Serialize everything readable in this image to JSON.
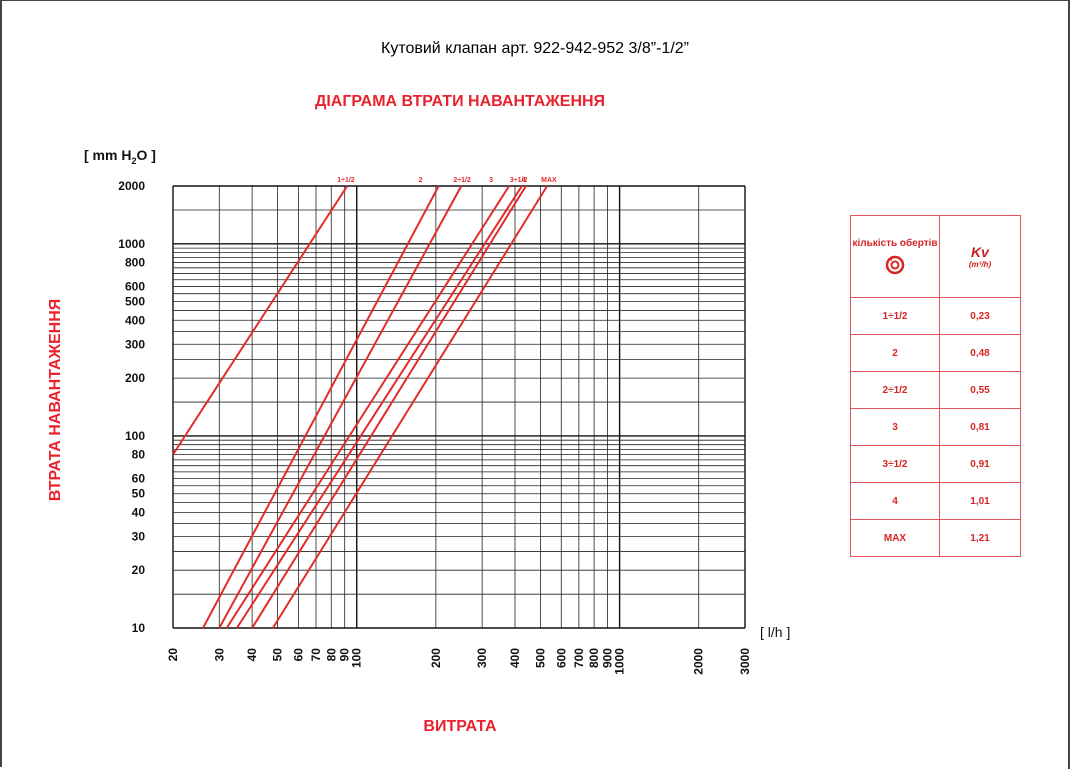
{
  "title": "Кутовий клапан арт. 922-942-952 3/8”-1/2”",
  "subtitle": "ДІАГРАМА ВТРАТИ НАВАНТАЖЕННЯ",
  "colors": {
    "accent": "#e8222e",
    "curve": "#e22b2b"
  },
  "chart_data": {
    "type": "line",
    "title": "ДІАГРАМА ВТРАТИ НАВАНТАЖЕННЯ",
    "xlabel": "ВИТРАТА",
    "ylabel": "ВТРАТА НАВАНТАЖЕННЯ",
    "x_unit": "[ l/h ]",
    "y_unit_prefix": "[ mm H",
    "y_unit_sub": "2",
    "y_unit_suffix": "O ]",
    "x_scale": "log",
    "y_scale": "log",
    "xlim": [
      20,
      3000
    ],
    "ylim": [
      10,
      2000
    ],
    "grid": true,
    "x_ticks": [
      "20",
      "30",
      "40",
      "50",
      "60",
      "70",
      "80",
      "90",
      "100",
      "200",
      "300",
      "400",
      "500",
      "600",
      "700",
      "800",
      "900",
      "1000",
      "2000",
      "3000"
    ],
    "y_ticks": [
      "10",
      "20",
      "30",
      "40",
      "50",
      "60",
      "80",
      "100",
      "200",
      "300",
      "400",
      "500",
      "600",
      "800",
      "1000",
      "2000"
    ],
    "series": [
      {
        "name": "1÷1/2",
        "x": [
          20,
          92
        ],
        "y": [
          80,
          2000
        ]
      },
      {
        "name": "2",
        "x": [
          26,
          205
        ],
        "y": [
          10,
          2000
        ]
      },
      {
        "name": "2÷1/2",
        "x": [
          30,
          250
        ],
        "y": [
          10,
          2000
        ]
      },
      {
        "name": "3",
        "x": [
          32,
          380
        ],
        "y": [
          10,
          2000
        ]
      },
      {
        "name": "3÷1/2",
        "x": [
          35,
          425
        ],
        "y": [
          10,
          2000
        ]
      },
      {
        "name": "4",
        "x": [
          40,
          440
        ],
        "y": [
          10,
          2000
        ]
      },
      {
        "name": "MAX",
        "x": [
          48,
          530
        ],
        "y": [
          10,
          2000
        ]
      }
    ]
  },
  "table": {
    "header_turns": "кількість обертів",
    "header_kv": "Kv",
    "header_kv_unit": "(m³/h)",
    "rows": [
      {
        "turns": "1÷1/2",
        "kv": "0,23"
      },
      {
        "turns": "2",
        "kv": "0,48"
      },
      {
        "turns": "2÷1/2",
        "kv": "0,55"
      },
      {
        "turns": "3",
        "kv": "0,81"
      },
      {
        "turns": "3÷1/2",
        "kv": "0,91"
      },
      {
        "turns": "4",
        "kv": "1,01"
      },
      {
        "turns": "MAX",
        "kv": "1,21"
      }
    ]
  }
}
